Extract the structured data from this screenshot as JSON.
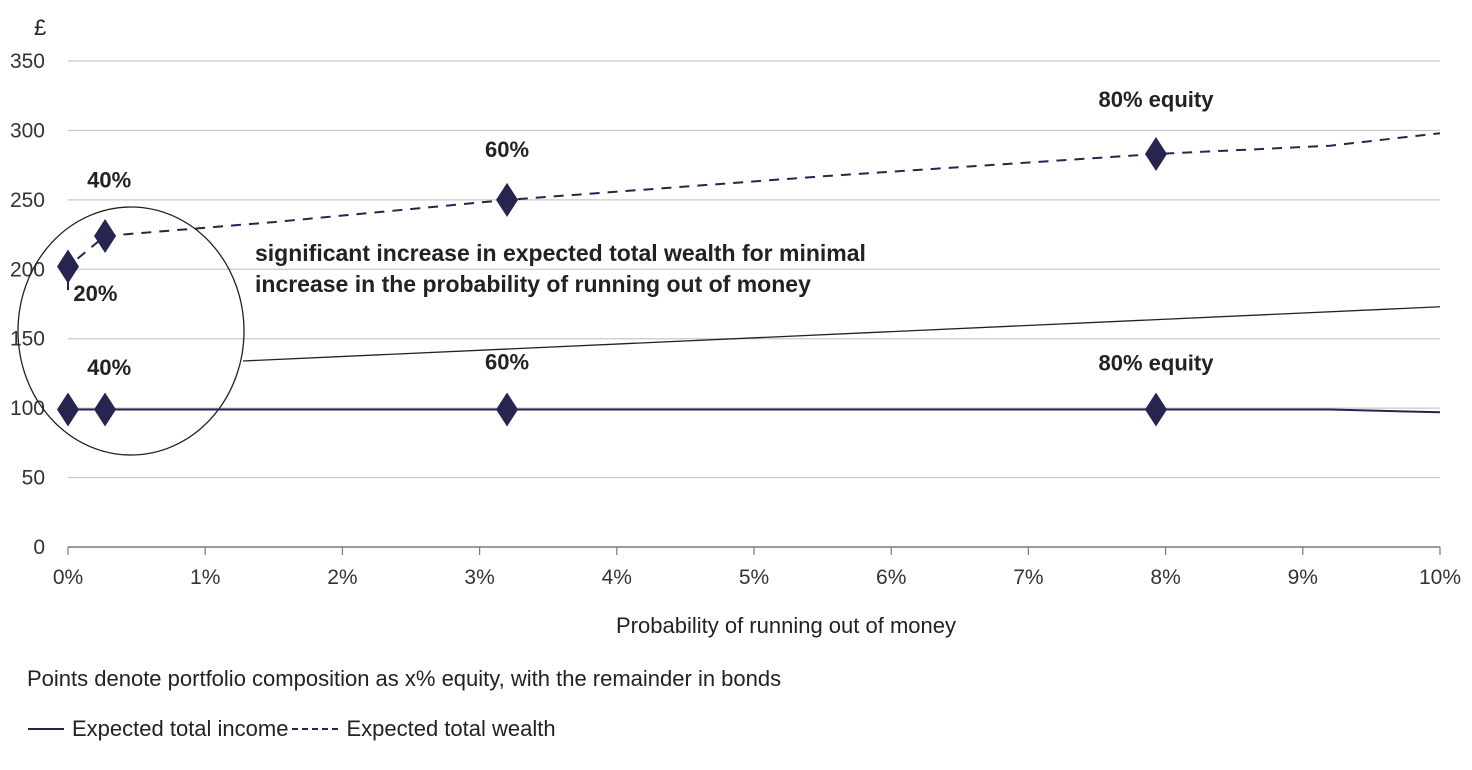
{
  "chart_data": {
    "type": "line",
    "ylabel": "£",
    "xlabel": "Probability of running out of money",
    "xlim": [
      0,
      10
    ],
    "ylim": [
      0,
      350
    ],
    "x_ticks": [
      "0%",
      "1%",
      "2%",
      "3%",
      "4%",
      "5%",
      "6%",
      "7%",
      "8%",
      "9%",
      "10%"
    ],
    "y_ticks": [
      "0",
      "50",
      "100",
      "150",
      "200",
      "250",
      "300",
      "350"
    ],
    "grid": "horizontal",
    "series": [
      {
        "name": "Expected total income",
        "style": "solid",
        "line": [
          [
            0,
            99
          ],
          [
            9.2,
            99
          ],
          [
            10,
            97
          ]
        ],
        "points": [
          [
            0,
            99
          ],
          [
            0.27,
            99
          ],
          [
            3.2,
            99
          ],
          [
            7.93,
            99
          ]
        ]
      },
      {
        "name": "Expected total wealth",
        "style": "dashed",
        "line": [
          [
            0,
            185
          ],
          [
            0,
            202
          ],
          [
            0.27,
            224
          ],
          [
            1.5,
            234
          ],
          [
            3.2,
            250
          ],
          [
            5.5,
            267
          ],
          [
            7.93,
            283
          ],
          [
            9.2,
            289
          ],
          [
            10,
            298
          ]
        ],
        "points": [
          [
            0,
            202
          ],
          [
            0.27,
            224
          ],
          [
            3.2,
            250
          ],
          [
            7.93,
            283
          ]
        ]
      }
    ],
    "point_labels": [
      {
        "text": "20%",
        "x": 0.2,
        "y": 177
      },
      {
        "text": "40%",
        "x": 0.3,
        "y": 259
      },
      {
        "text": "60%",
        "x": 3.2,
        "y": 281
      },
      {
        "text": "80% equity",
        "x": 7.93,
        "y": 317
      },
      {
        "text": "40%",
        "x": 0.3,
        "y": 124
      },
      {
        "text": "60%",
        "x": 3.2,
        "y": 128
      },
      {
        "text": "80% equity",
        "x": 7.93,
        "y": 127
      }
    ],
    "annotation": {
      "lines": [
        "significant increase in expected total wealth for minimal",
        "increase in the probability of running out of money"
      ]
    },
    "colors": {
      "series": "#25254f",
      "grid": "#c8c8c8",
      "axis": "#7a7a7a",
      "pointer": "#222222"
    }
  },
  "note": "Points denote portfolio composition as x% equity, with the remainder in bonds",
  "legend": {
    "income": "Expected total income",
    "wealth": "Expected total wealth"
  }
}
